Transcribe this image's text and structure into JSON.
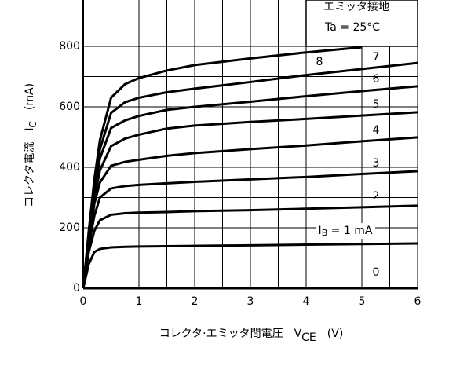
{
  "chart_data": {
    "type": "line",
    "y_label": [
      "コレクタ電流　I",
      "C",
      "　(mA)"
    ],
    "x_label": [
      "コレクタ·エミッタ間電圧　V",
      "CE",
      "　(V)"
    ],
    "box_lines": [
      "エミッタ接地",
      "Ta = 25°C"
    ],
    "series_label_prefix": [
      "I",
      "B",
      " = "
    ],
    "x": [
      0,
      0.1,
      0.2,
      0.3,
      0.5,
      0.75,
      1,
      1.5,
      2,
      3,
      4,
      5,
      6
    ],
    "series": [
      {
        "name": "0",
        "color": "#000000",
        "values": [
          0,
          0,
          0,
          0,
          0,
          0,
          0,
          0,
          0,
          0,
          0,
          0,
          0
        ]
      },
      {
        "name": "1 mA",
        "color": "#000000",
        "values": [
          0,
          80,
          120,
          130,
          135,
          137,
          138,
          139,
          140,
          142,
          144,
          146,
          148
        ]
      },
      {
        "name": "2",
        "color": "#000000",
        "values": [
          0,
          120,
          190,
          225,
          243,
          248,
          250,
          252,
          255,
          258,
          263,
          268,
          273
        ]
      },
      {
        "name": "3",
        "color": "#000000",
        "values": [
          0,
          140,
          240,
          300,
          330,
          338,
          342,
          347,
          352,
          360,
          368,
          378,
          387
        ]
      },
      {
        "name": "4",
        "color": "#000000",
        "values": [
          0,
          150,
          280,
          350,
          405,
          418,
          425,
          438,
          447,
          460,
          472,
          486,
          499
        ]
      },
      {
        "name": "5",
        "color": "#000000",
        "values": [
          0,
          160,
          300,
          390,
          470,
          495,
          508,
          528,
          538,
          550,
          560,
          571,
          582
        ]
      },
      {
        "name": "6",
        "color": "#000000",
        "values": [
          0,
          170,
          320,
          430,
          530,
          555,
          570,
          590,
          600,
          617,
          635,
          652,
          668
        ]
      },
      {
        "name": "7",
        "color": "#000000",
        "values": [
          0,
          180,
          340,
          460,
          580,
          615,
          630,
          648,
          660,
          682,
          705,
          725,
          745
        ]
      },
      {
        "name": "8",
        "color": "#000000",
        "values": [
          0,
          190,
          360,
          490,
          630,
          675,
          695,
          720,
          738,
          760,
          780,
          797,
          null
        ]
      }
    ],
    "xlim": [
      0,
      6
    ],
    "ylim": [
      0,
      950
    ],
    "xticks": [
      0,
      1,
      2,
      3,
      4,
      5,
      6
    ],
    "yticks": [
      0,
      200,
      400,
      600,
      800
    ],
    "xgrid": [
      0.5,
      1.5,
      2.5,
      3.5,
      4.5,
      5.5
    ],
    "ygrid": [
      100,
      300,
      500,
      700,
      900
    ],
    "grid": true
  }
}
